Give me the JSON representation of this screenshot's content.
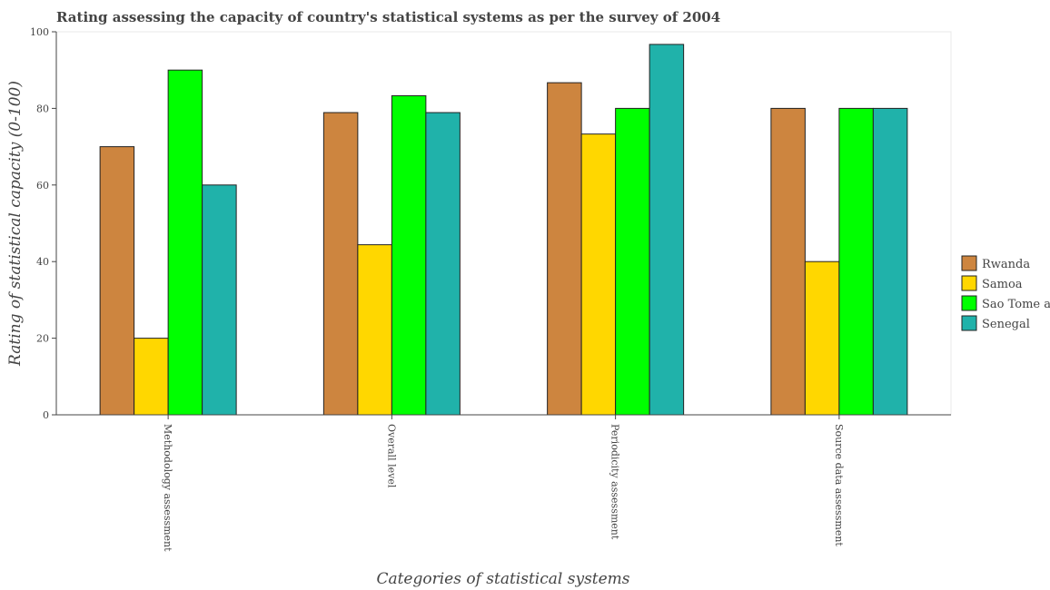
{
  "chart_data": {
    "type": "bar",
    "title": "Rating assessing the capacity of country's statistical systems as per the survey of 2004",
    "xlabel": "Categories of statistical systems",
    "ylabel": "Rating of statistical capacity (0-100)",
    "ylim": [
      0,
      100
    ],
    "yticks": [
      0,
      20,
      40,
      60,
      80,
      100
    ],
    "grid": false,
    "legend_position": "right",
    "categories": [
      "Methodology assessment",
      "Overall level",
      "Periodicity assessment",
      "Source data assessment"
    ],
    "series": [
      {
        "name": "Rwanda",
        "color": "#CD853F",
        "values": [
          70,
          78.9,
          86.7,
          80
        ]
      },
      {
        "name": "Samoa",
        "color": "#FFD700",
        "values": [
          20,
          44.4,
          73.3,
          40
        ]
      },
      {
        "name": "Sao Tome and Principe",
        "color": "#00FF00",
        "values": [
          90,
          83.3,
          80,
          80
        ]
      },
      {
        "name": "Senegal",
        "color": "#20B2AA",
        "values": [
          60,
          78.9,
          96.7,
          80
        ]
      }
    ]
  }
}
